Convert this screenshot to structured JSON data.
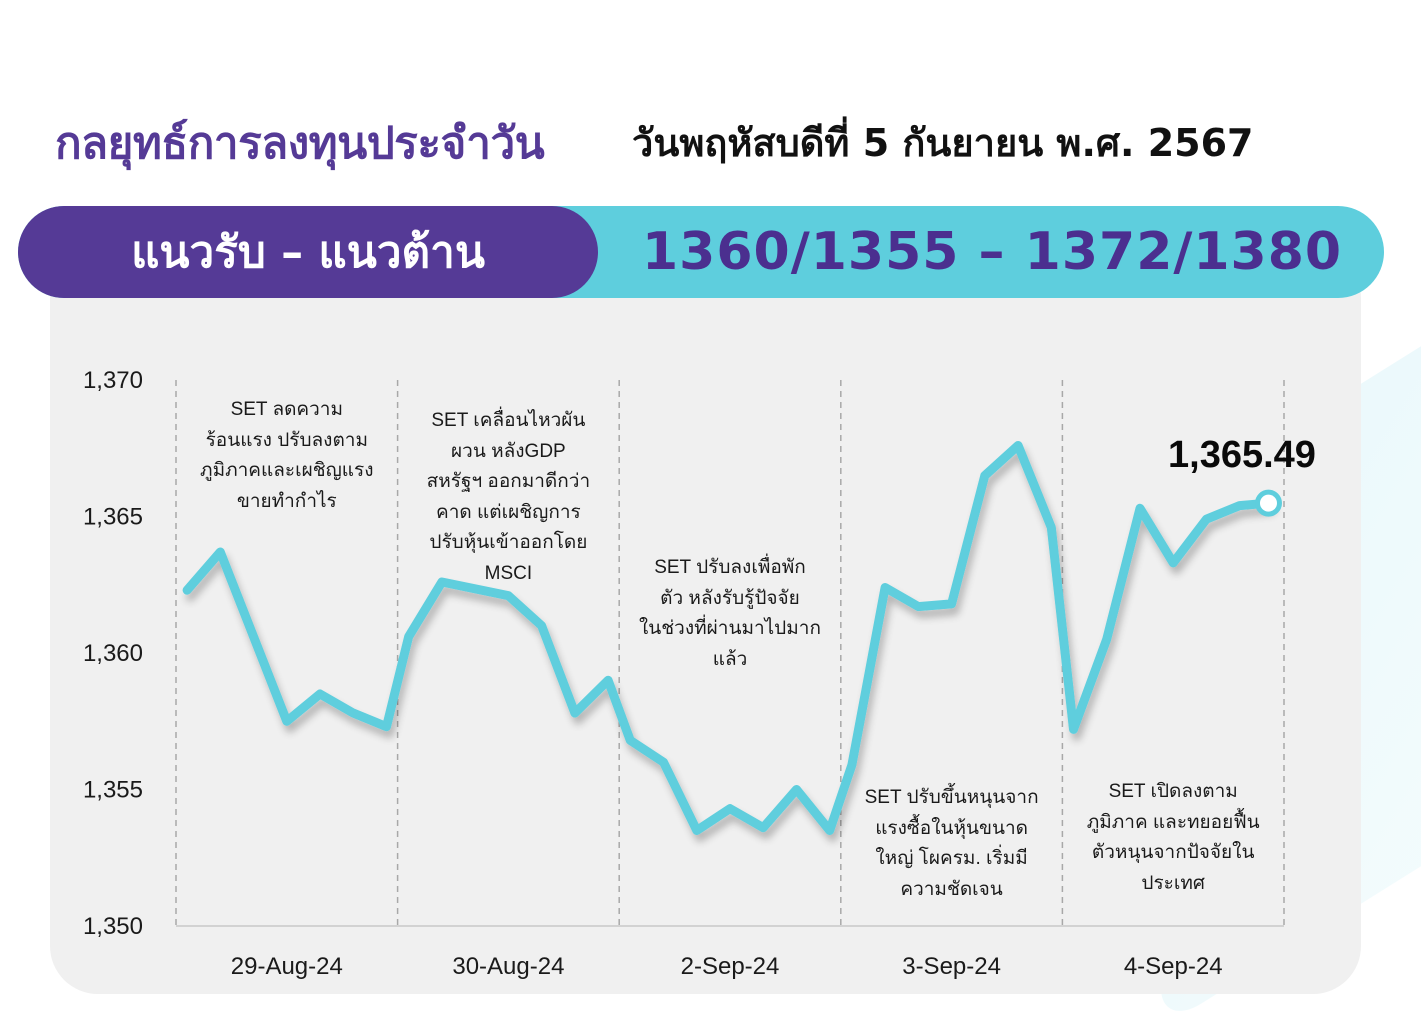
{
  "header": {
    "title": "กลยุทธ์การลงทุนประจำวัน",
    "date": "วันพฤหัสบดีที่ 5 กันยายน พ.ศ. 2567"
  },
  "levels": {
    "label": "แนวรับ – แนวต้าน",
    "value": "1360/1355  –  1372/1380"
  },
  "colors": {
    "purple": "#553a96",
    "cyan": "#5ecedd",
    "panel": "#f0f0f0"
  },
  "chart_data": {
    "type": "line",
    "ylim": [
      1350,
      1370
    ],
    "yticks": [
      1370,
      1365,
      1360,
      1355,
      1350
    ],
    "ytick_labels": [
      "1,370",
      "1,365",
      "1,360",
      "1,355",
      "1,350"
    ],
    "categories": [
      "29-Aug-24",
      "30-Aug-24",
      "2-Sep-24",
      "3-Sep-24",
      "4-Sep-24"
    ],
    "x": [
      0.05,
      0.2,
      0.5,
      0.65,
      0.8,
      0.95,
      1.05,
      1.2,
      1.5,
      1.65,
      1.8,
      1.95,
      2.05,
      2.2,
      2.35,
      2.5,
      2.65,
      2.8,
      2.95,
      3.05,
      3.2,
      3.35,
      3.5,
      3.65,
      3.8,
      3.95,
      4.05,
      4.2,
      4.35,
      4.5,
      4.65,
      4.8,
      4.93
    ],
    "values": [
      1362.3,
      1363.7,
      1357.5,
      1358.5,
      1357.8,
      1357.3,
      1360.6,
      1362.6,
      1362.1,
      1361.0,
      1357.8,
      1359.0,
      1356.8,
      1356.0,
      1353.5,
      1354.3,
      1353.6,
      1355.0,
      1353.5,
      1355.9,
      1362.4,
      1361.7,
      1361.8,
      1366.5,
      1367.6,
      1364.6,
      1357.2,
      1360.5,
      1365.3,
      1363.3,
      1364.9,
      1365.4,
      1365.49
    ],
    "last_value_label": "1,365.49",
    "annotations": [
      "SET ลดความ\nร้อนแรง ปรับลงตาม\nภูมิภาคและเผชิญแรง\nขายทำกำไร",
      "SET เคลื่อนไหวผัน\nผวน หลังGDP\nสหรัฐฯ ออกมาดีกว่า\nคาด แต่เผชิญการ\nปรับหุ้นเข้าออกโดย\nMSCI",
      "SET ปรับลงเพื่อพัก\nตัว หลังรับรู้ปัจจัย\nในช่วงที่ผ่านมาไปมาก\nแล้ว",
      "SET ปรับขึ้นหนุนจาก\nแรงซื้อในหุ้นขนาด\nใหญ่ โผครม. เริ่มมี\nความชัดเจน",
      "SET เปิดลงตาม\nภูมิภาค และทยอยฟื้น\nตัวหนุนจากปัจจัยใน\nประเทศ"
    ]
  }
}
